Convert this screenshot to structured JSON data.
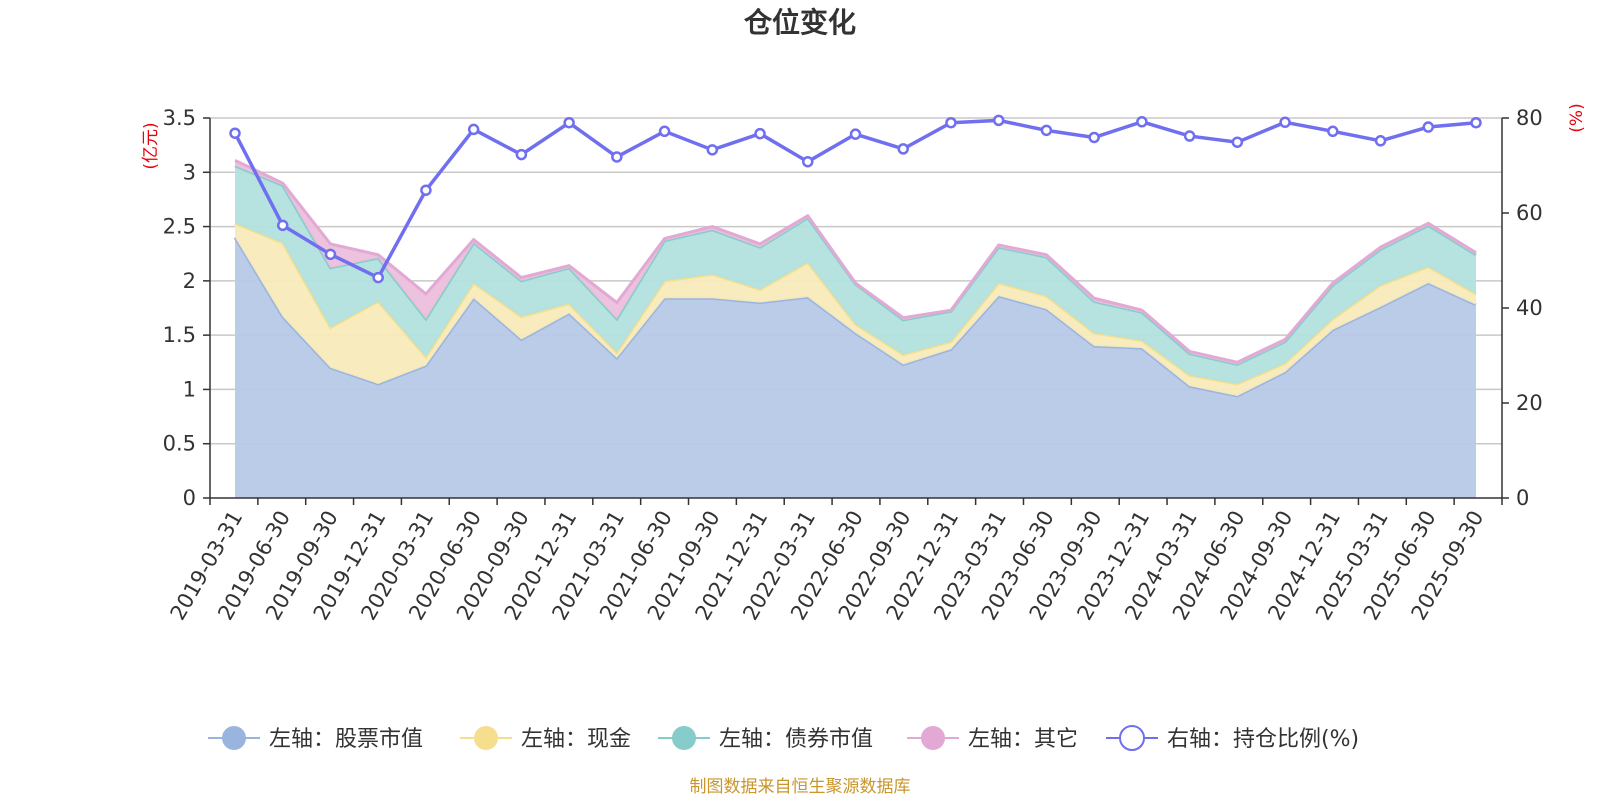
{
  "chart_data": {
    "type": "area",
    "title": "仓位变化",
    "left_axis": {
      "unit": "(亿元)",
      "ylim": [
        0,
        3.5
      ],
      "ticks": [
        "0",
        "0.5",
        "1",
        "1.5",
        "2",
        "2.5",
        "3",
        "3.5"
      ],
      "tick_values": [
        0,
        0.5,
        1,
        1.5,
        2,
        2.5,
        3,
        3.5
      ]
    },
    "right_axis": {
      "unit": "(%)",
      "ylim": [
        0,
        80
      ],
      "ticks": [
        "0",
        "20",
        "40",
        "60",
        "80"
      ],
      "tick_values": [
        0,
        20,
        40,
        60,
        80
      ]
    },
    "categories": [
      "2019-03-31",
      "2019-06-30",
      "2019-09-30",
      "2019-12-31",
      "2020-03-31",
      "2020-06-30",
      "2020-09-30",
      "2020-12-31",
      "2021-03-31",
      "2021-06-30",
      "2021-09-30",
      "2021-12-31",
      "2022-03-31",
      "2022-06-30",
      "2022-09-30",
      "2022-12-31",
      "2023-03-31",
      "2023-06-30",
      "2023-09-30",
      "2023-12-31",
      "2024-03-31",
      "2024-06-30",
      "2024-09-30",
      "2024-12-31",
      "2025-03-31",
      "2025-06-30",
      "2025-09-30"
    ],
    "series": [
      {
        "name": "左轴：股票市值",
        "axis": "left",
        "color": "#9ab4e0",
        "fill": "#b7c9e8",
        "values": [
          2.4,
          1.67,
          1.2,
          1.05,
          1.22,
          1.84,
          1.46,
          1.7,
          1.29,
          1.84,
          1.84,
          1.8,
          1.85,
          1.52,
          1.23,
          1.37,
          1.86,
          1.74,
          1.4,
          1.38,
          1.03,
          0.94,
          1.16,
          1.55,
          1.76,
          1.98,
          1.78
        ]
      },
      {
        "name": "左轴：现金",
        "axis": "left",
        "color": "#f5df8e",
        "fill": "#f8ebbb",
        "values": [
          0.13,
          0.68,
          0.37,
          0.76,
          0.08,
          0.14,
          0.21,
          0.09,
          0.05,
          0.16,
          0.22,
          0.12,
          0.32,
          0.08,
          0.09,
          0.07,
          0.12,
          0.12,
          0.12,
          0.07,
          0.1,
          0.11,
          0.08,
          0.1,
          0.2,
          0.15,
          0.1
        ]
      },
      {
        "name": "左轴：债券市值",
        "axis": "left",
        "color": "#86cccb",
        "fill": "#b2e0de",
        "values": [
          0.53,
          0.53,
          0.55,
          0.4,
          0.35,
          0.37,
          0.33,
          0.33,
          0.31,
          0.37,
          0.41,
          0.39,
          0.41,
          0.37,
          0.32,
          0.28,
          0.33,
          0.36,
          0.29,
          0.26,
          0.2,
          0.18,
          0.2,
          0.31,
          0.33,
          0.38,
          0.36
        ]
      },
      {
        "name": "左轴：其它",
        "axis": "left",
        "color": "#e2a9d4",
        "fill": "#ebbfdc",
        "values": [
          0.05,
          0.02,
          0.22,
          0.03,
          0.23,
          0.03,
          0.03,
          0.02,
          0.15,
          0.02,
          0.03,
          0.03,
          0.02,
          0.01,
          0.02,
          0.01,
          0.02,
          0.02,
          0.03,
          0.02,
          0.02,
          0.02,
          0.02,
          0.02,
          0.02,
          0.02,
          0.02
        ]
      },
      {
        "name": "右轴：持仓比例(%)",
        "axis": "right",
        "type": "line",
        "color": "#6f6ff0",
        "values": [
          76.8,
          57.4,
          51.3,
          46.4,
          64.8,
          77.6,
          72.3,
          79.0,
          71.8,
          77.2,
          73.3,
          76.7,
          70.8,
          76.6,
          73.5,
          79.0,
          79.5,
          77.4,
          75.9,
          79.2,
          76.2,
          74.9,
          79.1,
          77.2,
          75.2,
          78.1,
          79.0
        ]
      }
    ],
    "x_tick_labels": [
      "2019-03-31",
      "2019-06-30",
      "2019-09-30",
      "2019-12-31",
      "2020-03-31",
      "2020-06-30",
      "2020-09-30",
      "2020-12-31",
      "2021-03-31",
      "2021-06-30",
      "2021-09-30",
      "2021-12-31",
      "2022-03-31",
      "2022-06-30",
      "2022-09-30",
      "2022-12-31",
      "2023-03-31",
      "2023-06-30",
      "2023-09-30",
      "2023-12-31",
      "2024-03-31",
      "2024-06-30",
      "2024-09-30",
      "2024-12-31",
      "2025-03-31",
      "2025-06-30",
      "2025-09-30"
    ],
    "grid": true,
    "legend_position": "bottom-center",
    "source_note": "制图数据来自恒生聚源数据库"
  }
}
